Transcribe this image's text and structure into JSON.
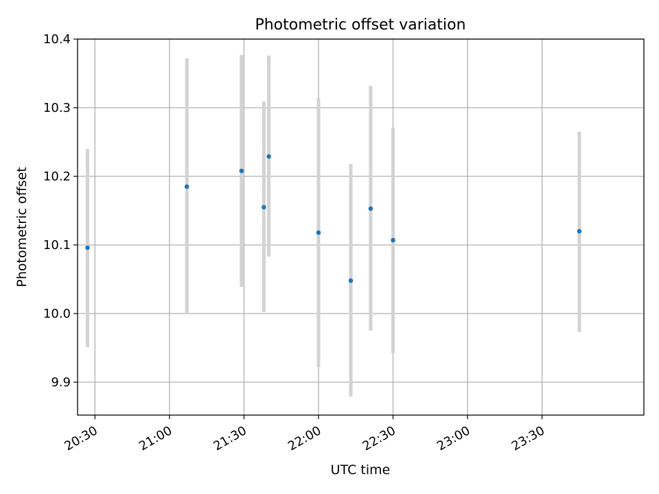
{
  "chart_data": {
    "type": "scatter",
    "title": "Photometric offset variation",
    "xlabel": "UTC time",
    "ylabel": "Photometric offset",
    "grid": true,
    "x_is_time": true,
    "xlim": [
      "20:23",
      "24:11"
    ],
    "ylim": [
      9.852,
      10.4
    ],
    "x_ticks": [
      "20:30",
      "21:00",
      "21:30",
      "22:00",
      "22:30",
      "23:00",
      "23:30"
    ],
    "y_ticks": [
      "9.9",
      "10.0",
      "10.1",
      "10.2",
      "10.3",
      "10.4"
    ],
    "series": [
      {
        "marker_color": "#1f77b4",
        "errorbar_color": "#d3d3d3",
        "points": [
          {
            "t": "20:27",
            "y": 10.096,
            "ylow": 9.951,
            "yhigh": 10.24
          },
          {
            "t": "21:07",
            "y": 10.185,
            "ylow": 10.0,
            "yhigh": 10.372
          },
          {
            "t": "21:29",
            "y": 10.208,
            "ylow": 10.039,
            "yhigh": 10.377
          },
          {
            "t": "21:38",
            "y": 10.155,
            "ylow": 10.002,
            "yhigh": 10.309
          },
          {
            "t": "21:40",
            "y": 10.229,
            "ylow": 10.083,
            "yhigh": 10.376
          },
          {
            "t": "22:00",
            "y": 10.118,
            "ylow": 9.922,
            "yhigh": 10.314
          },
          {
            "t": "22:13",
            "y": 10.048,
            "ylow": 9.879,
            "yhigh": 10.218
          },
          {
            "t": "22:21",
            "y": 10.153,
            "ylow": 9.975,
            "yhigh": 10.332
          },
          {
            "t": "22:30",
            "y": 10.107,
            "ylow": 9.942,
            "yhigh": 10.271
          },
          {
            "t": "23:45",
            "y": 10.12,
            "ylow": 9.973,
            "yhigh": 10.265
          }
        ]
      }
    ]
  }
}
